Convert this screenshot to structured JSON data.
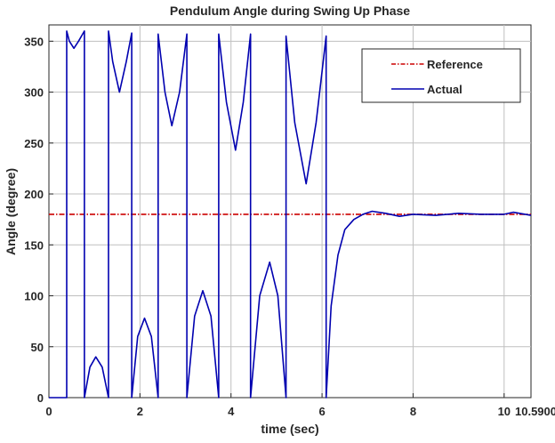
{
  "chart_data": {
    "type": "line",
    "title": "Pendulum Angle during Swing Up Phase",
    "xlabel": "time (sec)",
    "ylabel": "Angle (degree)",
    "xlim": [
      0,
      10.59
    ],
    "ylim": [
      0,
      366
    ],
    "xticks": [
      0,
      2,
      4,
      6,
      8,
      10,
      10.59
    ],
    "xtick_labels": [
      "0",
      "2",
      "4",
      "6",
      "8",
      "10",
      "10.5900"
    ],
    "yticks": [
      0,
      50,
      100,
      150,
      200,
      250,
      300,
      350
    ],
    "ytick_labels": [
      "0",
      "50",
      "100",
      "150",
      "200",
      "250",
      "300",
      "350"
    ],
    "grid": true,
    "legend": "top-right",
    "series": [
      {
        "name": "Reference",
        "color": "#cc0000",
        "style": "dash-dot",
        "x": [
          0,
          10.59
        ],
        "y": [
          180,
          180
        ]
      },
      {
        "name": "Actual",
        "color": "#0000b0",
        "style": "solid",
        "x": [
          0,
          0.39,
          0.39,
          0.45,
          0.55,
          0.65,
          0.78,
          0.78,
          0.9,
          1.03,
          1.17,
          1.31,
          1.31,
          1.4,
          1.55,
          1.7,
          1.82,
          1.82,
          1.95,
          2.1,
          2.25,
          2.4,
          2.4,
          2.55,
          2.7,
          2.87,
          3.03,
          3.03,
          3.2,
          3.38,
          3.56,
          3.73,
          3.73,
          3.9,
          4.1,
          4.27,
          4.43,
          4.43,
          4.63,
          4.85,
          5.03,
          5.21,
          5.21,
          5.4,
          5.65,
          5.87,
          6.09,
          6.09,
          6.2,
          6.35,
          6.5,
          6.7,
          6.9,
          7.1,
          7.4,
          7.7,
          8,
          8.5,
          9,
          9.5,
          10,
          10.2,
          10.59
        ],
        "y": [
          0,
          0,
          360,
          350,
          343,
          350,
          360,
          0,
          30,
          40,
          30,
          0,
          360,
          330,
          300,
          330,
          358,
          0,
          60,
          78,
          60,
          0,
          357,
          300,
          267,
          300,
          357,
          0,
          80,
          105,
          80,
          0,
          357,
          290,
          243,
          290,
          357,
          0,
          100,
          133,
          100,
          0,
          355,
          270,
          210,
          270,
          355,
          0,
          90,
          140,
          165,
          175,
          180,
          183,
          181,
          178,
          180,
          179,
          181,
          180,
          180,
          182,
          179
        ]
      }
    ]
  }
}
